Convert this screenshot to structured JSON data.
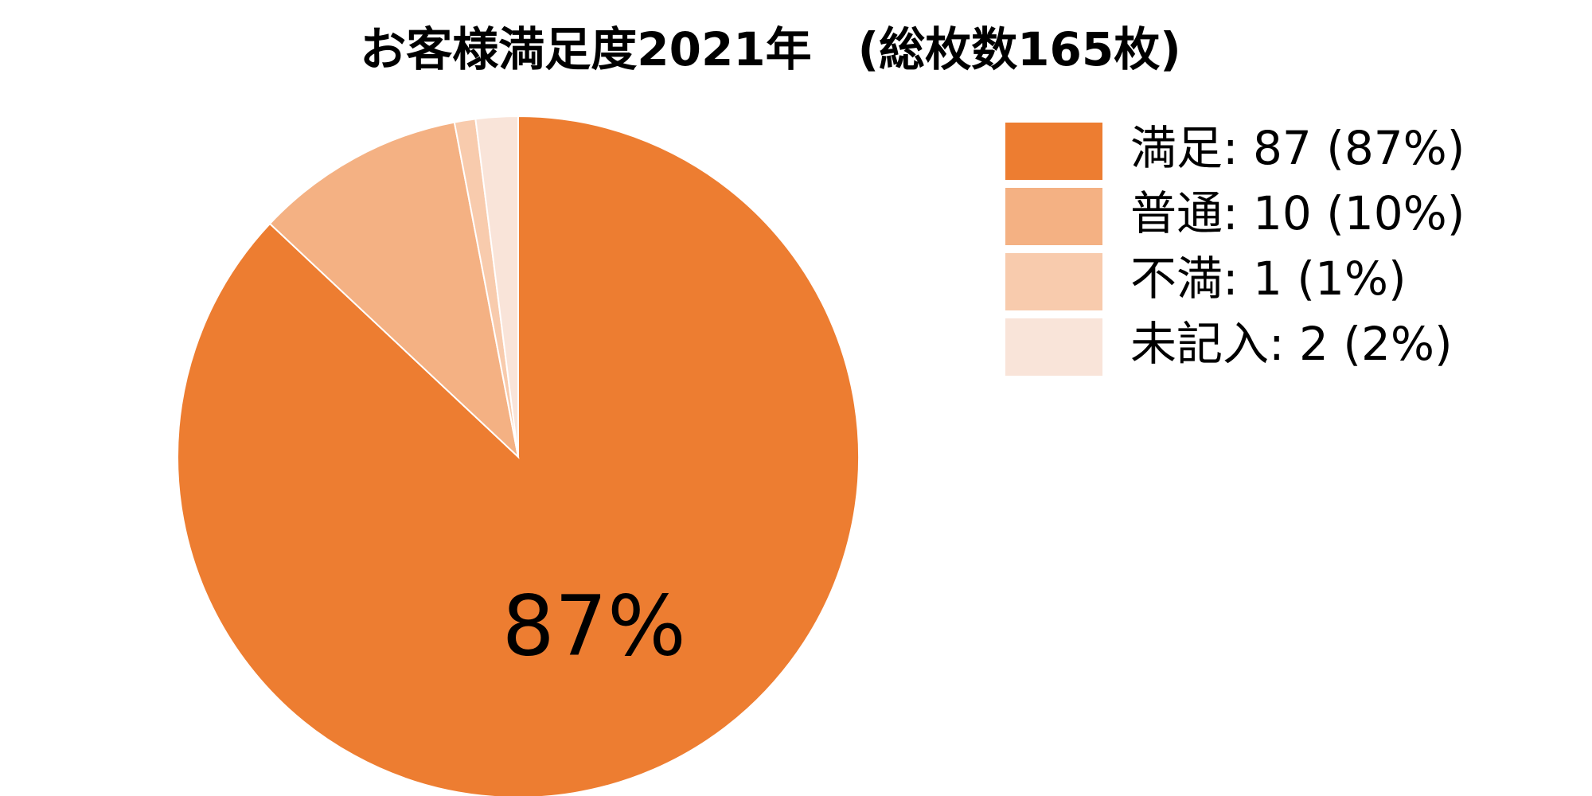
{
  "chart_data": {
    "type": "pie",
    "title": "お客様満足度2021年　(総枚数165枚)",
    "categories": [
      "満足: 87 (87%)",
      "普通: 10 (10%)",
      "不満: 1 (1%)",
      "未記入: 2 (2%)"
    ],
    "values": [
      87,
      10,
      1,
      2
    ],
    "value_labels": [
      "87%",
      null,
      null,
      null
    ],
    "colors": [
      "#ED7D31",
      "#F4B183",
      "#F8CBAD",
      "#F9E4D9"
    ],
    "legend": "right"
  }
}
